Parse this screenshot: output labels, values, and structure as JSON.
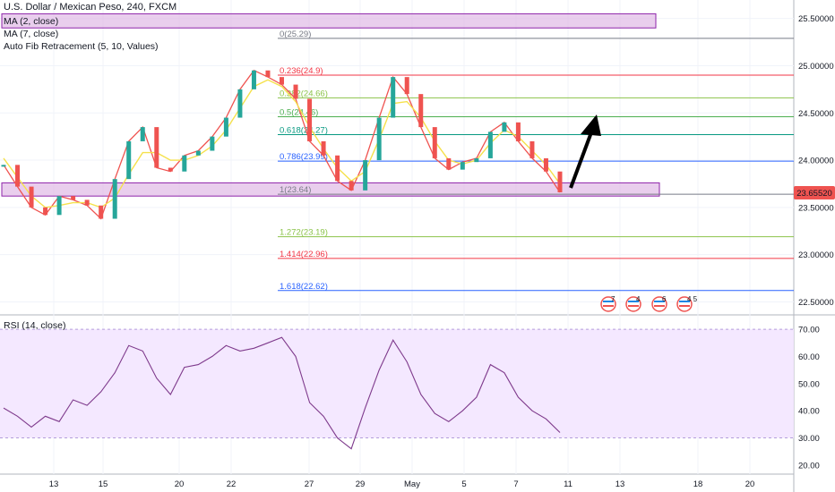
{
  "header": {
    "symbol_title": "U.S. Dollar / Mexican Peso, 240, FXCM",
    "ma2_label": "MA (2, close)",
    "ma7_label": "MA (7, close)",
    "fib_label": "Auto Fib Retracement (5, 10, Values)",
    "rsi_label": "RSI (14, close)"
  },
  "colors": {
    "up_candle": "#26a69a",
    "down_candle": "#ef5350",
    "ma_line": "#f5e14c",
    "zone_fill": "#e1bee7",
    "zone_border": "#8e24aa",
    "rsi_line": "#7e3a8c",
    "rsi_band": "#f3e5ff",
    "price_badge": "#ef5350",
    "arrow": "#000000"
  },
  "price_axis": {
    "ticks": [
      "25.50000",
      "25.00000",
      "24.50000",
      "24.00000",
      "23.50000",
      "23.00000",
      "22.50000"
    ],
    "current_price": "23.65520"
  },
  "rsi_axis": {
    "ticks": [
      "70.00",
      "60.00",
      "50.00",
      "40.00",
      "30.00",
      "20.00"
    ]
  },
  "time_axis": {
    "ticks": [
      "13",
      "15",
      "20",
      "22",
      "27",
      "29",
      "May",
      "5",
      "7",
      "11",
      "13",
      "18",
      "20"
    ]
  },
  "fib_levels": [
    {
      "ratio": "0",
      "value": "25.29",
      "label": "0(25.29)",
      "color": "#787b86"
    },
    {
      "ratio": "0.236",
      "value": "24.9",
      "label": "0.236(24.9)",
      "color": "#f23645"
    },
    {
      "ratio": "0.382",
      "value": "24.66",
      "label": "0.382(24.66)",
      "color": "#8bc34a"
    },
    {
      "ratio": "0.5",
      "value": "24.46",
      "label": "0.5(24.46)",
      "color": "#4caf50"
    },
    {
      "ratio": "0.618",
      "value": "24.27",
      "label": "0.618(24.27)",
      "color": "#089981"
    },
    {
      "ratio": "0.786",
      "value": "23.99",
      "label": "0.786(23.99)",
      "color": "#2962ff"
    },
    {
      "ratio": "1",
      "value": "23.64",
      "label": "1(23.64)",
      "color": "#787b86"
    },
    {
      "ratio": "1.272",
      "value": "23.19",
      "label": "1.272(23.19)",
      "color": "#8bc34a"
    },
    {
      "ratio": "1.414",
      "value": "22.96",
      "label": "1.414(22.96)",
      "color": "#f23645"
    },
    {
      "ratio": "1.618",
      "value": "22.62",
      "label": "1.618(22.62)",
      "color": "#2962ff"
    }
  ],
  "event_badges": [
    "7",
    "4",
    "6",
    "4 5"
  ],
  "chart_data": [
    {
      "type": "line",
      "title": "U.S. Dollar / Mexican Peso, 240, FXCM",
      "x": [
        0,
        4,
        8,
        12,
        16,
        20,
        24,
        28,
        32,
        36,
        40,
        44,
        48,
        52,
        56,
        60,
        64,
        68,
        72,
        76,
        80,
        84,
        88,
        92,
        96,
        100,
        104,
        108,
        112,
        116,
        120,
        124,
        128,
        132,
        136,
        140,
        144,
        148,
        152,
        156,
        160
      ],
      "series": [
        {
          "name": "close",
          "values": [
            23.95,
            23.72,
            23.5,
            23.42,
            23.62,
            23.58,
            23.52,
            23.38,
            23.8,
            24.2,
            24.35,
            23.92,
            23.88,
            24.05,
            24.1,
            24.25,
            24.45,
            24.75,
            24.95,
            24.88,
            24.8,
            24.65,
            24.2,
            24.05,
            23.78,
            23.68,
            24.0,
            24.45,
            24.88,
            24.7,
            24.35,
            24.02,
            23.9,
            23.98,
            24.02,
            24.3,
            24.4,
            24.2,
            24.02,
            23.88,
            23.66
          ]
        },
        {
          "name": "MA (7, close)",
          "values": [
            24.02,
            23.82,
            23.62,
            23.5,
            23.52,
            23.55,
            23.55,
            23.5,
            23.6,
            23.85,
            24.08,
            24.08,
            24.0,
            24.0,
            24.05,
            24.15,
            24.32,
            24.55,
            24.78,
            24.85,
            24.78,
            24.62,
            24.35,
            24.12,
            23.92,
            23.78,
            23.88,
            24.22,
            24.6,
            24.62,
            24.45,
            24.2,
            24.0,
            23.96,
            24.0,
            24.18,
            24.32,
            24.25,
            24.1,
            23.95,
            23.75
          ]
        }
      ],
      "ylim": [
        22.4,
        25.62
      ],
      "current_value": 23.6552
    },
    {
      "type": "line",
      "title": "RSI (14, close)",
      "x": [
        0,
        4,
        8,
        12,
        16,
        20,
        24,
        28,
        32,
        36,
        40,
        44,
        48,
        52,
        56,
        60,
        64,
        68,
        72,
        76,
        80,
        84,
        88,
        92,
        96,
        100,
        104,
        108,
        112,
        116,
        120,
        124,
        128,
        132,
        136,
        140,
        144,
        148,
        152,
        156,
        160
      ],
      "series": [
        {
          "name": "RSI",
          "values": [
            41,
            38,
            34,
            38,
            36,
            44,
            42,
            47,
            54,
            64,
            62,
            52,
            46,
            56,
            57,
            60,
            64,
            62,
            63,
            65,
            67,
            60,
            43,
            38,
            30,
            26,
            41,
            55,
            66,
            58,
            46,
            39,
            36,
            40,
            45,
            57,
            54,
            45,
            40,
            37,
            32
          ]
        }
      ],
      "ylim": [
        18,
        72
      ],
      "band": [
        30,
        70
      ]
    }
  ]
}
